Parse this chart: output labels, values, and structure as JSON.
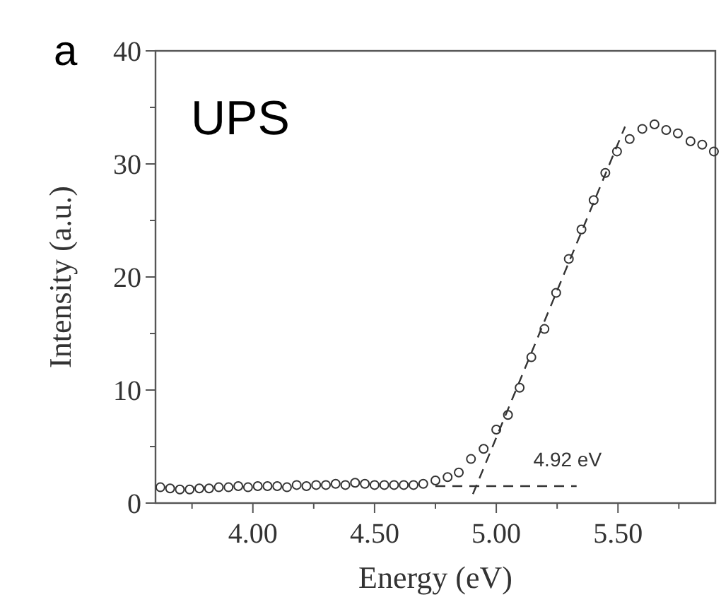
{
  "chart_data": {
    "type": "scatter",
    "title": "a",
    "xlabel": "Energy (eV)",
    "ylabel": "Intensity (a.u.)",
    "xlim": [
      3.6,
      5.9
    ],
    "ylim": [
      0,
      40
    ],
    "xticks": [
      {
        "value": 3.75,
        "label": null
      },
      {
        "value": 4,
        "label": "4.00"
      },
      {
        "value": 4.25,
        "label": null
      },
      {
        "value": 4.5,
        "label": "4.50"
      },
      {
        "value": 4.75,
        "label": null
      },
      {
        "value": 5,
        "label": "5.00"
      },
      {
        "value": 5.25,
        "label": null
      },
      {
        "value": 5.5,
        "label": "5.50"
      },
      {
        "value": 5.75,
        "label": null
      }
    ],
    "yticks": [
      0,
      {
        "value": 5,
        "label": null
      },
      10,
      {
        "value": 15,
        "label": null
      },
      20,
      {
        "value": 25,
        "label": null
      },
      30,
      {
        "value": 35,
        "label": null
      },
      40
    ],
    "grid": false,
    "marker": "circle",
    "annotations": [
      "UPS",
      {
        "text": "4.92 eV",
        "x": 4.92,
        "y": 1.5
      }
    ],
    "series": [
      {
        "color": "#333333",
        "x": [
          3.62,
          3.66,
          3.7,
          3.74,
          3.78,
          3.82,
          3.86,
          3.9,
          3.94,
          3.98,
          4.02,
          4.06,
          4.1,
          4.14,
          4.18,
          4.22,
          4.26,
          4.3,
          4.34,
          4.38,
          4.42,
          4.46,
          4.5,
          4.54,
          4.58,
          4.62,
          4.66,
          4.7,
          4.75,
          4.8,
          4.846,
          4.896,
          4.948,
          5.0,
          5.048,
          5.096,
          5.144,
          5.198,
          5.246,
          5.298,
          5.35,
          5.4,
          5.448,
          5.496,
          5.548,
          5.6,
          5.65,
          5.698,
          5.746,
          5.798,
          5.846,
          5.894
        ],
        "values": [
          1.4,
          1.3,
          1.2,
          1.2,
          1.3,
          1.3,
          1.4,
          1.4,
          1.5,
          1.4,
          1.5,
          1.5,
          1.5,
          1.4,
          1.6,
          1.5,
          1.6,
          1.6,
          1.7,
          1.6,
          1.8,
          1.7,
          1.6,
          1.6,
          1.6,
          1.6,
          1.6,
          1.7,
          2.0,
          2.3,
          2.7,
          3.9,
          4.8,
          6.5,
          7.8,
          10.2,
          12.9,
          15.4,
          18.6,
          21.6,
          24.2,
          26.8,
          29.2,
          31.1,
          32.2,
          33.1,
          33.5,
          33.0,
          32.7,
          32.0,
          31.7,
          31.1
        ]
      },
      {
        "type": "line",
        "color": "#333333",
        "line_style": "dashed",
        "marker": "none",
        "x": [
          4.75,
          5.33
        ],
        "values": [
          1.5,
          1.5
        ]
      },
      {
        "type": "line",
        "color": "#333333",
        "line_style": "dashed",
        "marker": "none",
        "x": [
          4.904,
          5.529
        ],
        "values": [
          0.8,
          33.3
        ]
      }
    ]
  }
}
